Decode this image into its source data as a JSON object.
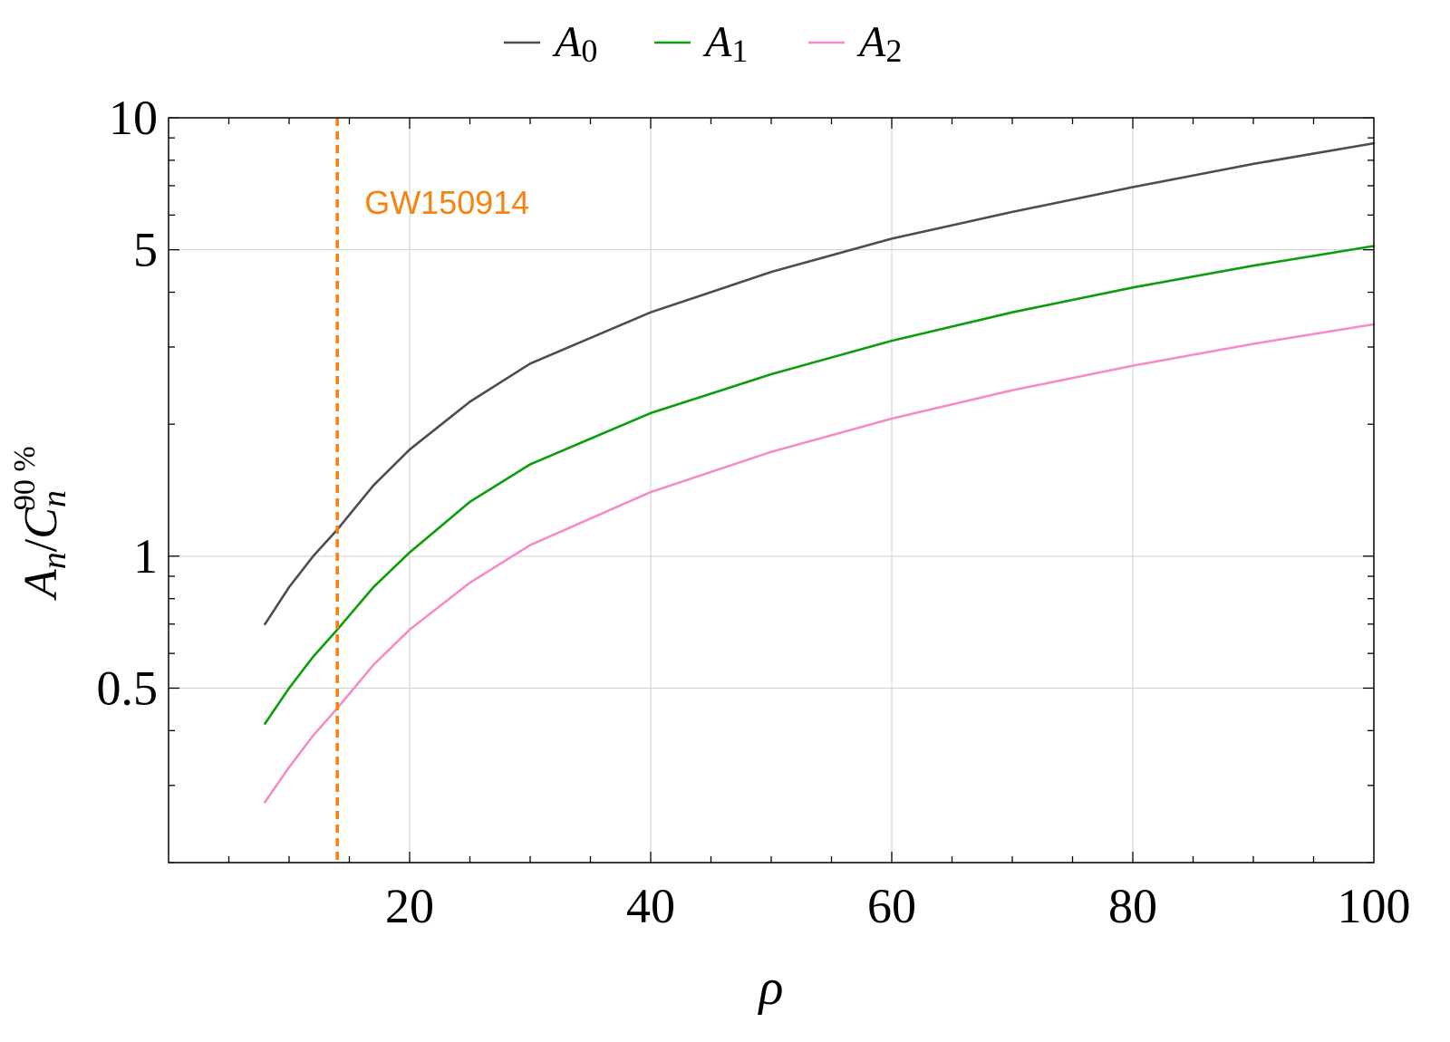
{
  "chart_data": {
    "type": "line",
    "title": "",
    "xlabel": "ρ",
    "ylabel": {
      "base": "A",
      "base_sub": "n",
      "slash": "/",
      "den": "C",
      "den_sub": "n",
      "den_sup": "90 %"
    },
    "xlim": [
      0,
      100
    ],
    "ylim": [
      0.2,
      10
    ],
    "yscale": "log",
    "grid": true,
    "legend_position": "top",
    "x_ticks": [
      20,
      40,
      60,
      80,
      100
    ],
    "x_tick_labels": [
      "20",
      "40",
      "60",
      "80",
      "100"
    ],
    "y_ticks": [
      0.5,
      1,
      5,
      10
    ],
    "y_tick_labels": [
      "0.5",
      "1",
      "5",
      "10"
    ],
    "series": [
      {
        "name": "A",
        "name_sub": "0",
        "color": "#4d4d4d",
        "x": [
          8,
          10,
          12,
          14,
          17,
          20,
          25,
          30,
          40,
          50,
          60,
          70,
          80,
          90,
          100
        ],
        "y": [
          0.7,
          0.85,
          1.0,
          1.15,
          1.45,
          1.75,
          2.25,
          2.75,
          3.6,
          4.45,
          5.3,
          6.1,
          6.95,
          7.85,
          8.75
        ]
      },
      {
        "name": "A",
        "name_sub": "1",
        "color": "#0a9e0a",
        "x": [
          8,
          10,
          12,
          14,
          17,
          20,
          25,
          30,
          40,
          50,
          60,
          70,
          80,
          90,
          100
        ],
        "y": [
          0.415,
          0.5,
          0.59,
          0.68,
          0.85,
          1.02,
          1.33,
          1.62,
          2.12,
          2.6,
          3.1,
          3.6,
          4.1,
          4.6,
          5.1
        ]
      },
      {
        "name": "A",
        "name_sub": "2",
        "color": "#f58cc8",
        "x": [
          8,
          10,
          12,
          14,
          17,
          20,
          25,
          30,
          40,
          50,
          60,
          70,
          80,
          90,
          100
        ],
        "y": [
          0.275,
          0.33,
          0.39,
          0.45,
          0.565,
          0.68,
          0.87,
          1.06,
          1.4,
          1.73,
          2.06,
          2.39,
          2.72,
          3.05,
          3.38
        ]
      }
    ],
    "annotations": [
      {
        "type": "vline",
        "x": 14,
        "label": "GW150914",
        "color": "#f7820f",
        "style": "dashed"
      }
    ]
  }
}
